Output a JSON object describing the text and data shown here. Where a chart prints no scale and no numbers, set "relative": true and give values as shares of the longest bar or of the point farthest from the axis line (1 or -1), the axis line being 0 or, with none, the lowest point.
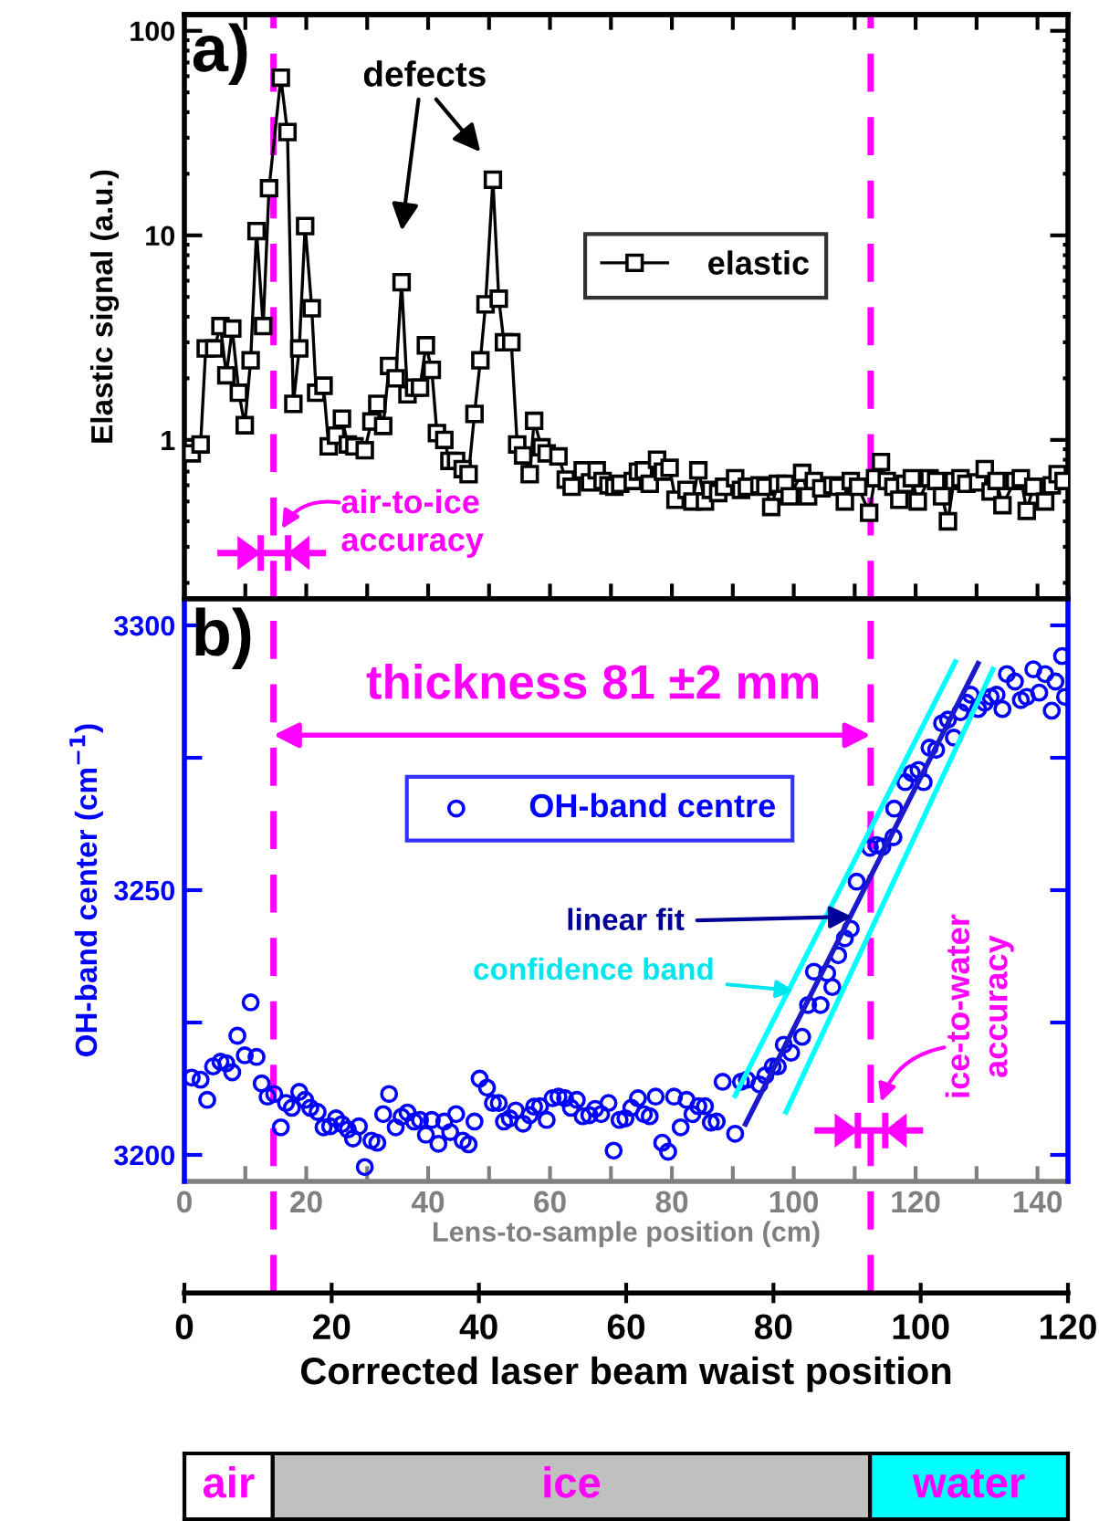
{
  "chart_data": [
    {
      "type": "line",
      "marker": "square",
      "xlim": [
        0,
        120
      ],
      "log": true,
      "ylim": [
        0.167,
        120
      ],
      "yticks": [
        1,
        10,
        100
      ],
      "tick_labels": "y",
      "ylabel": "Elastic signal (a.u.)",
      "legend": "center right",
      "series": [
        {
          "name": "elastic",
          "color": "#000000",
          "x": [
            1.0,
            2.2,
            2.9,
            4.05,
            4.9,
            5.7,
            6.5,
            7.4,
            8.2,
            9.0,
            9.8,
            10.7,
            11.5,
            13.1,
            14.0,
            14.8,
            15.6,
            16.4,
            17.3,
            17.9,
            18.9,
            19.6,
            20.6,
            21.4,
            22.2,
            23.1,
            24.5,
            25.4,
            26.2,
            27.0,
            27.8,
            28.7,
            29.5,
            30.3,
            31.2,
            32.0,
            32.8,
            33.6,
            34.3,
            35.3,
            36.0,
            36.9,
            37.8,
            38.6,
            39.4,
            40.2,
            40.9,
            41.9,
            42.7,
            43.4,
            44.4,
            45.2,
            46.0,
            46.9,
            47.5,
            48.5,
            49.2,
            50.8,
            51.8,
            52.6,
            54.1,
            55.1,
            56.0,
            56.8,
            57.6,
            58.4,
            59.2,
            60.9,
            61.6,
            62.4,
            63.2,
            64.2,
            65.0,
            65.9,
            66.7,
            68.2,
            69.0,
            69.8,
            70.7,
            71.5,
            72.5,
            73.3,
            74.8,
            75.6,
            76.4,
            78.1,
            78.9,
            79.7,
            80.6,
            81.6,
            82.2,
            83.9,
            84.7,
            85.5,
            86.5,
            88.0,
            88.8,
            89.7,
            90.5,
            91.5,
            93.0,
            93.8,
            94.6,
            95.4,
            96.3,
            97.1,
            97.9,
            98.8,
            99.6,
            101.2,
            102.1,
            102.9,
            103.7,
            104.5,
            105.4,
            106.2,
            107.8,
            108.7,
            109.5,
            110.3,
            111.1,
            112.8,
            113.6,
            114.4,
            115.3,
            116.9,
            117.8,
            118.6,
            119.4
          ],
          "values": [
            0.86,
            0.95,
            2.8,
            2.8,
            3.6,
            2.07,
            3.5,
            1.7,
            1.18,
            2.45,
            10.5,
            3.6,
            17,
            59,
            32,
            1.5,
            2.8,
            11.1,
            4.4,
            1.7,
            1.84,
            0.93,
            1.05,
            1.27,
            0.95,
            0.93,
            0.89,
            1.23,
            1.5,
            1.17,
            2.3,
            2.0,
            5.9,
            1.67,
            1.8,
            1.8,
            2.9,
            2.2,
            1.08,
            1.0,
            0.79,
            0.79,
            0.72,
            0.68,
            1.34,
            2.45,
            4.6,
            18.7,
            4.9,
            3.0,
            3.0,
            0.95,
            0.84,
            0.68,
            1.24,
            0.92,
            0.86,
            0.83,
            0.64,
            0.59,
            0.71,
            0.62,
            0.71,
            0.63,
            0.6,
            0.59,
            0.61,
            0.63,
            0.7,
            0.71,
            0.61,
            0.8,
            0.7,
            0.73,
            0.51,
            0.57,
            0.5,
            0.71,
            0.5,
            0.57,
            0.55,
            0.59,
            0.65,
            0.57,
            0.59,
            0.6,
            0.59,
            0.47,
            0.61,
            0.61,
            0.53,
            0.69,
            0.53,
            0.63,
            0.58,
            0.6,
            0.59,
            0.5,
            0.63,
            0.59,
            0.44,
            0.65,
            0.78,
            0.63,
            0.59,
            0.51,
            0.61,
            0.65,
            0.5,
            0.65,
            0.63,
            0.53,
            0.4,
            0.63,
            0.65,
            0.61,
            0.62,
            0.72,
            0.56,
            0.63,
            0.48,
            0.63,
            0.65,
            0.45,
            0.59,
            0.5,
            0.6,
            0.68,
            0.63
          ]
        }
      ],
      "ref_lines": [
        {
          "axis": "x",
          "value": 12.1,
          "color": "#ff00ff",
          "line_style": "dashed"
        },
        {
          "axis": "x",
          "value": 93.2,
          "color": "#ff00ff",
          "line_style": "dashed"
        }
      ],
      "annotations": [
        "a)",
        "defects",
        {
          "text": "air-to-ice\naccuracy",
          "x": 12.1,
          "y": 0.28
        }
      ]
    },
    {
      "type": "scatter",
      "marker": "circle",
      "xlim": [
        0,
        120
      ],
      "xticks": [
        0,
        20,
        40,
        60,
        80,
        100,
        120
      ],
      "xlabel": "Corrected laser beam waist position",
      "x2lim": [
        0,
        145
      ],
      "x2ticks": [
        0,
        {
          "value": 10,
          "label": null
        },
        20,
        {
          "value": 30,
          "label": null
        },
        40,
        {
          "value": 50,
          "label": null
        },
        60,
        {
          "value": 70,
          "label": null
        },
        80,
        {
          "value": 90,
          "label": null
        },
        100,
        {
          "value": 110,
          "label": null
        },
        120,
        {
          "value": 130,
          "label": null
        },
        140
      ],
      "x2label": "Lens-to-sample position (cm)",
      "ylim": [
        3195,
        3305
      ],
      "yticks": [
        3200,
        {
          "value": 3225,
          "label": null
        },
        3250,
        {
          "value": 3275,
          "label": null
        },
        3300
      ],
      "ylabel": "OH-band center (cm$^{−1}$)",
      "legend": "center",
      "series": [
        {
          "name": "OH-band centre",
          "color": "#0000ff",
          "x": [
            1.0,
            2.2,
            3.1,
            3.9,
            4.9,
            5.7,
            6.5,
            7.2,
            8.2,
            9.0,
            9.8,
            10.5,
            11.3,
            12.2,
            13.1,
            13.8,
            14.6,
            15.6,
            16.4,
            17.1,
            18.1,
            18.9,
            19.8,
            20.6,
            21.4,
            22.2,
            22.9,
            23.7,
            24.5,
            25.4,
            26.2,
            27.0,
            27.8,
            28.7,
            29.5,
            30.3,
            31.2,
            32.0,
            32.8,
            33.6,
            34.5,
            35.3,
            36.1,
            36.9,
            37.8,
            38.6,
            39.4,
            40.1,
            41.1,
            41.9,
            42.7,
            43.4,
            44.2,
            45.0,
            46.0,
            46.9,
            47.5,
            48.3,
            49.2,
            50.0,
            50.8,
            51.7,
            52.5,
            53.3,
            54.1,
            55.0,
            55.8,
            56.6,
            57.6,
            58.3,
            59.1,
            59.9,
            60.7,
            61.6,
            62.4,
            63.2,
            64.0,
            64.9,
            65.7,
            66.5,
            67.4,
            68.2,
            69.0,
            69.8,
            70.7,
            71.5,
            72.3,
            73.1,
            74.8,
            75.6,
            76.4,
            78.1,
            78.9,
            79.9,
            80.6,
            81.4,
            82.4,
            83.9,
            84.7,
            85.5,
            86.4,
            87.3,
            88.0,
            88.8,
            89.7,
            90.5,
            91.3,
            93.1,
            94.0,
            94.8,
            96.3,
            96.4,
            97.9,
            98.8,
            99.7,
            100.4,
            101.2,
            102.1,
            102.9,
            103.7,
            104.5,
            105.4,
            106.2,
            106.8,
            107.8,
            108.7,
            109.5,
            110.3,
            111.1,
            111.7,
            112.8,
            113.6,
            114.4,
            115.3,
            116.1,
            116.9,
            117.8,
            118.3,
            119.2,
            119.6
          ],
          "values": [
            3214.6,
            3214.2,
            3210.4,
            3216.7,
            3217.6,
            3217.3,
            3215.6,
            3222.5,
            3218.8,
            3228.8,
            3218.5,
            3213.5,
            3211.0,
            3211.5,
            3205.2,
            3209.8,
            3208.9,
            3211.9,
            3210.4,
            3208.9,
            3208.1,
            3205.2,
            3205.4,
            3206.9,
            3205.8,
            3204.8,
            3203.1,
            3205.4,
            3197.7,
            3202.7,
            3202.3,
            3207.7,
            3211.5,
            3205.2,
            3207.2,
            3208.0,
            3206.3,
            3206.6,
            3203.8,
            3206.6,
            3202.1,
            3206.3,
            3204.3,
            3207.7,
            3202.7,
            3202.0,
            3206.3,
            3214.4,
            3212.7,
            3209.8,
            3209.8,
            3206.3,
            3206.9,
            3208.4,
            3205.9,
            3207.5,
            3209.1,
            3209.2,
            3206.6,
            3210.7,
            3211.0,
            3210.7,
            3208.9,
            3210.4,
            3207.3,
            3207.5,
            3208.7,
            3207.7,
            3209.8,
            3200.8,
            3206.6,
            3206.9,
            3208.9,
            3210.7,
            3207.7,
            3207.3,
            3211.0,
            3202.3,
            3200.6,
            3211.0,
            3205.2,
            3210.4,
            3207.7,
            3209.2,
            3209.2,
            3206.1,
            3206.3,
            3213.8,
            3204.0,
            3213.8,
            3214.2,
            3213.3,
            3215.0,
            3216.7,
            3216.7,
            3220.8,
            3219.3,
            3222.3,
            3228.3,
            3234.6,
            3228.3,
            3234.3,
            3231.7,
            3237.7,
            3240.9,
            3242.7,
            3251.6,
            3258.0,
            3258.5,
            3258.2,
            3260.0,
            3265.4,
            3270.4,
            3272.1,
            3272.7,
            3270.4,
            3276.9,
            3276.5,
            3281.5,
            3282.2,
            3278.8,
            3283.6,
            3285.4,
            3286.9,
            3284.2,
            3285.4,
            3286.5,
            3286.9,
            3284.2,
            3290.8,
            3289.4,
            3285.9,
            3286.5,
            3291.7,
            3287.3,
            3290.8,
            3283.9,
            3289.4,
            3294.2,
            3286.5
          ]
        },
        {
          "type": "line",
          "marker": "none",
          "color": "#1a1acc",
          "x": [
            76.2,
            107.8
          ],
          "values": [
            3205.8,
            3292.8
          ]
        },
        {
          "type": "line",
          "marker": "none",
          "color": "#00ffff",
          "x": [
            74.8,
            104.7
          ],
          "values": [
            3211.2,
            3293.1
          ]
        },
        {
          "type": "line",
          "marker": "none",
          "color": "#00ffff",
          "x": [
            81.7,
            109.8
          ],
          "values": [
            3208.1,
            3291.7
          ]
        }
      ],
      "ref_lines": [
        {
          "axis": "x",
          "value": 12.1,
          "color": "#ff00ff",
          "line_style": "dashed"
        },
        {
          "axis": "x",
          "value": 93.2,
          "color": "#ff00ff",
          "line_style": "dashed"
        }
      ],
      "annotations": [
        "b)",
        "thickness 81 ±2 mm",
        {
          "text": "linear fit",
          "x": 90.7,
          "y": 3245
        },
        {
          "text": "confidence band",
          "x": 82.8,
          "y": 3231
        },
        {
          "text": "ice-to-water\naccuracy",
          "x": 93.2,
          "y": 3204.6
        }
      ]
    },
    {
      "type": "bar",
      "orientation": "horizontal",
      "stacked": true,
      "relative": true,
      "categories": [
        null
      ],
      "series": [
        {
          "name": "air",
          "color": "#ffffff",
          "values": [
            0.1
          ]
        },
        {
          "name": "ice",
          "color": "#c0c0c0",
          "values": [
            0.676
          ]
        },
        {
          "name": "water",
          "color": "#00ffff",
          "values": [
            0.224
          ]
        }
      ]
    }
  ]
}
